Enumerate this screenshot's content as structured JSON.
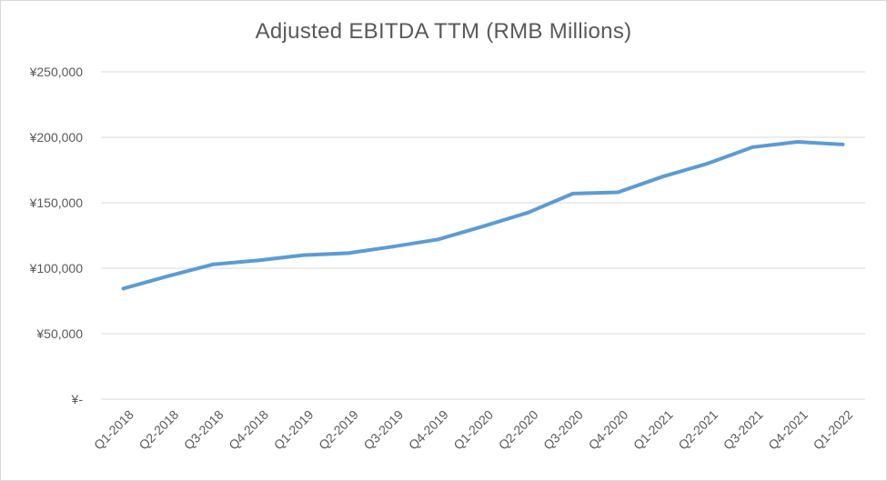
{
  "chart_data": {
    "type": "line",
    "title": "Adjusted EBITDA TTM (RMB Millions)",
    "xlabel": "",
    "ylabel": "",
    "categories": [
      "Q1-2018",
      "Q2-2018",
      "Q3-2018",
      "Q4-2018",
      "Q1-2019",
      "Q2-2019",
      "Q3-2019",
      "Q4-2019",
      "Q1-2020",
      "Q2-2020",
      "Q3-2020",
      "Q4-2020",
      "Q1-2021",
      "Q2-2021",
      "Q3-2021",
      "Q4-2021",
      "Q1-2022"
    ],
    "series": [
      {
        "values": [
          84500,
          94000,
          103000,
          106000,
          110000,
          111500,
          116500,
          122000,
          132000,
          142500,
          157000,
          158000,
          170000,
          180000,
          192500,
          196500,
          194500
        ]
      }
    ],
    "y_ticks": [
      0,
      50000,
      100000,
      150000,
      200000,
      250000
    ],
    "y_tick_labels": [
      "¥-",
      "¥50,000",
      "¥100,000",
      "¥150,000",
      "¥200,000",
      "¥250,000"
    ],
    "ylim": [
      0,
      250000
    ],
    "grid": true,
    "legend": "none",
    "line_color": "#5b9bd5",
    "grid_color": "#d9d9d9"
  }
}
